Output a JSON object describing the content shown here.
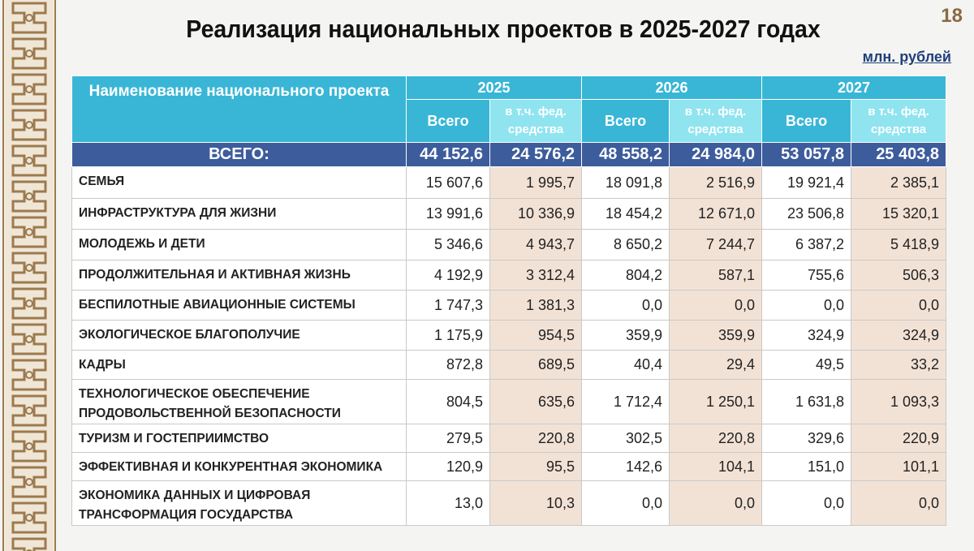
{
  "page_number": "18",
  "title": "Реализация национальных проектов в 2025-2027 годах",
  "unit": "млн. рублей",
  "table": {
    "name_header": "Наименование национального проекта",
    "years": [
      "2025",
      "2026",
      "2027"
    ],
    "subheaders": [
      "Всего",
      "в т.ч. фед. средства"
    ],
    "total": {
      "label": "ВСЕГО:",
      "values": [
        "44 152,6",
        "24 576,2",
        "48 558,2",
        "24 984,0",
        "53 057,8",
        "25 403,8"
      ]
    },
    "rows": [
      {
        "name": "СЕМЬЯ",
        "values": [
          "15 607,6",
          "1 995,7",
          "18 091,8",
          "2 516,9",
          "19 921,4",
          "2 385,1"
        ]
      },
      {
        "name": "ИНФРАСТРУКТУРА ДЛЯ ЖИЗНИ",
        "values": [
          "13 991,6",
          "10 336,9",
          "18 454,2",
          "12 671,0",
          "23 506,8",
          "15 320,1"
        ]
      },
      {
        "name": "МОЛОДЕЖЬ И ДЕТИ",
        "values": [
          "5 346,6",
          "4 943,7",
          "8 650,2",
          "7 244,7",
          "6 387,2",
          "5 418,9"
        ]
      },
      {
        "name": "ПРОДОЛЖИТЕЛЬНАЯ И АКТИВНАЯ ЖИЗНЬ",
        "values": [
          "4 192,9",
          "3 312,4",
          "804,2",
          "587,1",
          "755,6",
          "506,3"
        ]
      },
      {
        "name": "БЕСПИЛОТНЫЕ АВИАЦИОННЫЕ СИСТЕМЫ",
        "values": [
          "1 747,3",
          "1 381,3",
          "0,0",
          "0,0",
          "0,0",
          "0,0"
        ]
      },
      {
        "name": "ЭКОЛОГИЧЕСКОЕ БЛАГОПОЛУЧИЕ",
        "values": [
          "1 175,9",
          "954,5",
          "359,9",
          "359,9",
          "324,9",
          "324,9"
        ]
      },
      {
        "name": "КАДРЫ",
        "values": [
          "872,8",
          "689,5",
          "40,4",
          "29,4",
          "49,5",
          "33,2"
        ]
      },
      {
        "name": "ТЕХНОЛОГИЧЕСКОЕ ОБЕСПЕЧЕНИЕ ПРОДОВОЛЬСТВЕННОЙ БЕЗОПАСНОСТИ",
        "values": [
          "804,5",
          "635,6",
          "1 712,4",
          "1 250,1",
          "1 631,8",
          "1 093,3"
        ]
      },
      {
        "name": "ТУРИЗМ И ГОСТЕПРИИМСТВО",
        "values": [
          "279,5",
          "220,8",
          "302,5",
          "220,8",
          "329,6",
          "220,9"
        ]
      },
      {
        "name": "ЭФФЕКТИВНАЯ И КОНКУРЕНТНАЯ ЭКОНОМИКА",
        "values": [
          "120,9",
          "95,5",
          "142,6",
          "104,1",
          "151,0",
          "101,1"
        ]
      },
      {
        "name": "ЭКОНОМИКА ДАННЫХ И ЦИФРОВАЯ ТРАНСФОРМАЦИЯ ГОСУДАРСТВА",
        "values": [
          "13,0",
          "10,3",
          "0,0",
          "0,0",
          "0,0",
          "0,0"
        ]
      }
    ]
  }
}
